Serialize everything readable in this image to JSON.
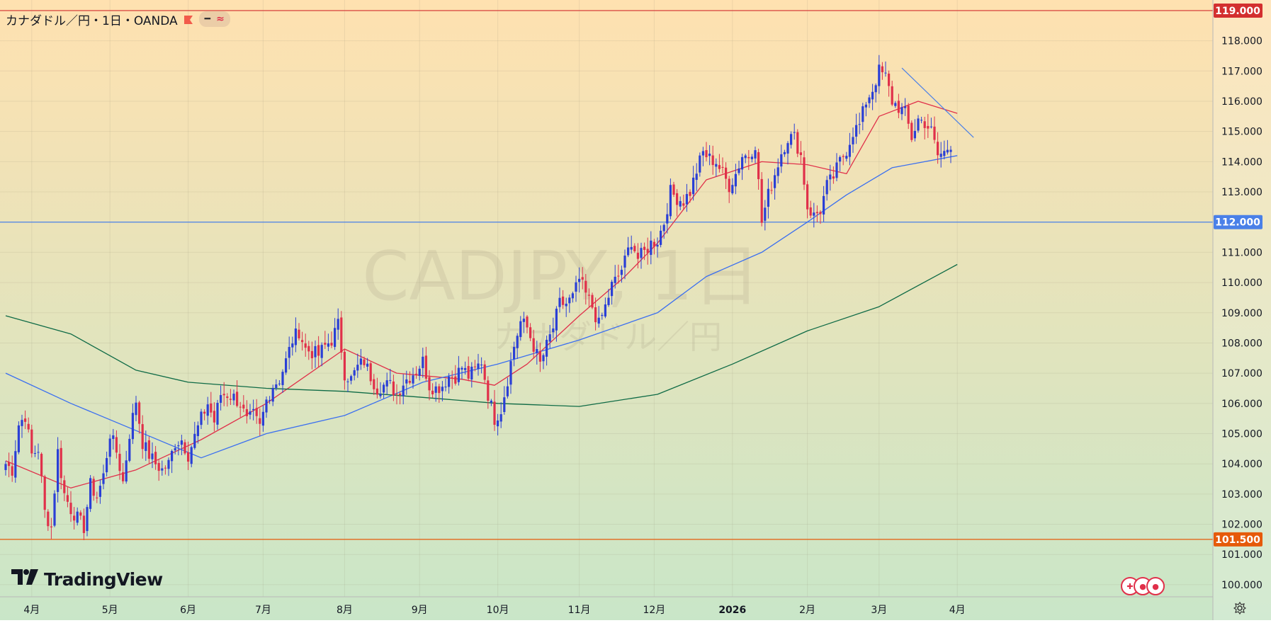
{
  "legend": {
    "symbol_title": "カナダドル／円・1日・OANDA",
    "indicator_pill_a": "━",
    "indicator_pill_b": "≈"
  },
  "watermark": {
    "line1": "CADJPY, 1日",
    "line2": "カナダドル／円"
  },
  "brand": {
    "logo_text": "TradingView"
  },
  "colors": {
    "bg_top": "#ffe1b0",
    "bg_bottom": "#c9e6c8",
    "up": "#2a3fd6",
    "down": "#e0304a",
    "ma_short": "#e0304a",
    "ma_mid": "#3b6ff0",
    "ma_long": "#0f6b46",
    "line_top": "#d32f2f",
    "line_mid": "#4a80e8",
    "line_low": "#e65a0a",
    "trend": "#4a80e8"
  },
  "chart_data": {
    "type": "candlestick",
    "symbol": "CADJPY",
    "interval": "1日",
    "ylim": [
      99.6,
      119.35
    ],
    "y_ticks": [
      "100.000",
      "101.000",
      "102.000",
      "103.000",
      "104.000",
      "105.000",
      "106.000",
      "107.000",
      "108.000",
      "109.000",
      "110.000",
      "111.000",
      "112.000",
      "113.000",
      "114.000",
      "115.000",
      "116.000",
      "117.000",
      "118.000",
      "119.000"
    ],
    "x_ticks": [
      {
        "label": "4月",
        "index": 8
      },
      {
        "label": "5月",
        "index": 32
      },
      {
        "label": "6月",
        "index": 56
      },
      {
        "label": "7月",
        "index": 79
      },
      {
        "label": "8月",
        "index": 104
      },
      {
        "label": "9月",
        "index": 127
      },
      {
        "label": "10月",
        "index": 151
      },
      {
        "label": "11月",
        "index": 176
      },
      {
        "label": "12月",
        "index": 199
      },
      {
        "label": "2026",
        "index": 223
      },
      {
        "label": "2月",
        "index": 246
      },
      {
        "label": "3月",
        "index": 268
      },
      {
        "label": "4月",
        "index": 292
      }
    ],
    "horizontal_lines": [
      {
        "price": 119.0,
        "label": "119.000",
        "color": "#d32f2f"
      },
      {
        "price": 112.0,
        "label": "112.000",
        "color": "#4a80e8"
      },
      {
        "price": 101.5,
        "label": "101.500",
        "color": "#e65a0a"
      }
    ],
    "trend_line": {
      "from": {
        "index": 275,
        "price": 117.1
      },
      "to": {
        "index": 297,
        "price": 114.8
      }
    },
    "anchors": [
      [
        0,
        104.0
      ],
      [
        2,
        103.8
      ],
      [
        4,
        105.3
      ],
      [
        6,
        105.6
      ],
      [
        8,
        104.3
      ],
      [
        10,
        104.5
      ],
      [
        12,
        102.4
      ],
      [
        14,
        101.9
      ],
      [
        16,
        104.4
      ],
      [
        18,
        103.0
      ],
      [
        20,
        102.5
      ],
      [
        22,
        102.2
      ],
      [
        24,
        101.9
      ],
      [
        26,
        103.3
      ],
      [
        28,
        102.9
      ],
      [
        30,
        103.6
      ],
      [
        32,
        105.0
      ],
      [
        34,
        104.4
      ],
      [
        36,
        103.4
      ],
      [
        38,
        105.0
      ],
      [
        40,
        106.1
      ],
      [
        42,
        104.7
      ],
      [
        44,
        104.3
      ],
      [
        46,
        104.0
      ],
      [
        48,
        103.8
      ],
      [
        50,
        104.0
      ],
      [
        52,
        104.7
      ],
      [
        54,
        104.8
      ],
      [
        56,
        104.3
      ],
      [
        58,
        104.9
      ],
      [
        60,
        105.5
      ],
      [
        62,
        106.0
      ],
      [
        64,
        105.4
      ],
      [
        66,
        106.3
      ],
      [
        68,
        106.3
      ],
      [
        70,
        106.2
      ],
      [
        72,
        106.0
      ],
      [
        74,
        105.4
      ],
      [
        76,
        105.6
      ],
      [
        78,
        105.2
      ],
      [
        80,
        106.1
      ],
      [
        82,
        106.6
      ],
      [
        84,
        106.8
      ],
      [
        86,
        107.4
      ],
      [
        88,
        108.1
      ],
      [
        90,
        108.4
      ],
      [
        92,
        107.8
      ],
      [
        94,
        107.7
      ],
      [
        96,
        107.6
      ],
      [
        98,
        107.9
      ],
      [
        100,
        108.1
      ],
      [
        102,
        108.6
      ],
      [
        104,
        107.0
      ],
      [
        106,
        106.8
      ],
      [
        108,
        107.2
      ],
      [
        110,
        107.4
      ],
      [
        112,
        106.9
      ],
      [
        114,
        106.5
      ],
      [
        116,
        106.6
      ],
      [
        118,
        106.6
      ],
      [
        120,
        106.3
      ],
      [
        122,
        106.7
      ],
      [
        124,
        106.9
      ],
      [
        126,
        107.1
      ],
      [
        128,
        107.4
      ],
      [
        130,
        106.6
      ],
      [
        132,
        106.5
      ],
      [
        134,
        106.6
      ],
      [
        136,
        106.9
      ],
      [
        138,
        106.9
      ],
      [
        140,
        107.2
      ],
      [
        142,
        106.9
      ],
      [
        144,
        107.1
      ],
      [
        146,
        107.4
      ],
      [
        148,
        106.3
      ],
      [
        150,
        105.5
      ],
      [
        152,
        105.8
      ],
      [
        154,
        106.8
      ],
      [
        156,
        107.9
      ],
      [
        158,
        108.7
      ],
      [
        160,
        108.5
      ],
      [
        162,
        107.9
      ],
      [
        164,
        107.3
      ],
      [
        166,
        107.9
      ],
      [
        168,
        108.5
      ],
      [
        170,
        109.3
      ],
      [
        172,
        109.3
      ],
      [
        174,
        109.5
      ],
      [
        176,
        110.1
      ],
      [
        178,
        109.6
      ],
      [
        180,
        109.2
      ],
      [
        182,
        108.6
      ],
      [
        184,
        109.2
      ],
      [
        186,
        109.9
      ],
      [
        188,
        110.2
      ],
      [
        190,
        110.7
      ],
      [
        192,
        111.4
      ],
      [
        194,
        110.8
      ],
      [
        196,
        111.0
      ],
      [
        198,
        111.3
      ],
      [
        200,
        111.4
      ],
      [
        202,
        112.0
      ],
      [
        204,
        113.0
      ],
      [
        206,
        112.8
      ],
      [
        208,
        112.7
      ],
      [
        210,
        113.0
      ],
      [
        212,
        113.7
      ],
      [
        214,
        114.3
      ],
      [
        216,
        114.1
      ],
      [
        218,
        114.0
      ],
      [
        220,
        113.6
      ],
      [
        222,
        113.2
      ],
      [
        224,
        113.6
      ],
      [
        226,
        114.2
      ],
      [
        228,
        114.2
      ],
      [
        230,
        114.6
      ],
      [
        232,
        112.0
      ],
      [
        234,
        112.9
      ],
      [
        236,
        113.6
      ],
      [
        238,
        114.3
      ],
      [
        240,
        114.8
      ],
      [
        242,
        114.8
      ],
      [
        244,
        114.2
      ],
      [
        246,
        112.5
      ],
      [
        248,
        112.2
      ],
      [
        250,
        112.4
      ],
      [
        252,
        113.2
      ],
      [
        254,
        113.5
      ],
      [
        256,
        114.0
      ],
      [
        258,
        114.4
      ],
      [
        260,
        115.0
      ],
      [
        262,
        115.2
      ],
      [
        264,
        116.0
      ],
      [
        266,
        116.4
      ],
      [
        268,
        117.0
      ],
      [
        270,
        116.8
      ],
      [
        272,
        116.0
      ],
      [
        274,
        115.8
      ],
      [
        276,
        115.6
      ],
      [
        278,
        114.8
      ],
      [
        280,
        115.4
      ],
      [
        282,
        115.3
      ],
      [
        284,
        115.0
      ],
      [
        286,
        114.2
      ],
      [
        288,
        114.3
      ],
      [
        290,
        114.6
      ]
    ],
    "moving_averages": [
      {
        "period": 20,
        "color": "#e0304a",
        "points": [
          [
            0,
            104.1
          ],
          [
            20,
            103.2
          ],
          [
            40,
            103.8
          ],
          [
            60,
            104.8
          ],
          [
            80,
            106.0
          ],
          [
            104,
            107.8
          ],
          [
            120,
            107.0
          ],
          [
            140,
            106.8
          ],
          [
            150,
            106.6
          ],
          [
            160,
            107.3
          ],
          [
            176,
            108.9
          ],
          [
            190,
            110.2
          ],
          [
            200,
            111.3
          ],
          [
            215,
            113.4
          ],
          [
            232,
            114.0
          ],
          [
            246,
            113.9
          ],
          [
            258,
            113.6
          ],
          [
            268,
            115.5
          ],
          [
            280,
            116.0
          ],
          [
            292,
            115.6
          ]
        ]
      },
      {
        "period": 75,
        "color": "#3b6ff0",
        "points": [
          [
            0,
            107.0
          ],
          [
            20,
            106.0
          ],
          [
            40,
            105.1
          ],
          [
            60,
            104.2
          ],
          [
            80,
            105.0
          ],
          [
            104,
            105.6
          ],
          [
            128,
            106.7
          ],
          [
            151,
            107.3
          ],
          [
            176,
            108.1
          ],
          [
            200,
            109.0
          ],
          [
            215,
            110.2
          ],
          [
            232,
            111.0
          ],
          [
            246,
            112.0
          ],
          [
            258,
            112.9
          ],
          [
            272,
            113.8
          ],
          [
            292,
            114.2
          ]
        ]
      },
      {
        "period": 200,
        "color": "#0f6b46",
        "points": [
          [
            0,
            108.9
          ],
          [
            20,
            108.3
          ],
          [
            40,
            107.1
          ],
          [
            56,
            106.7
          ],
          [
            80,
            106.5
          ],
          [
            104,
            106.4
          ],
          [
            128,
            106.2
          ],
          [
            151,
            106.0
          ],
          [
            176,
            105.9
          ],
          [
            200,
            106.3
          ],
          [
            223,
            107.3
          ],
          [
            246,
            108.4
          ],
          [
            268,
            109.2
          ],
          [
            292,
            110.6
          ]
        ]
      }
    ]
  }
}
